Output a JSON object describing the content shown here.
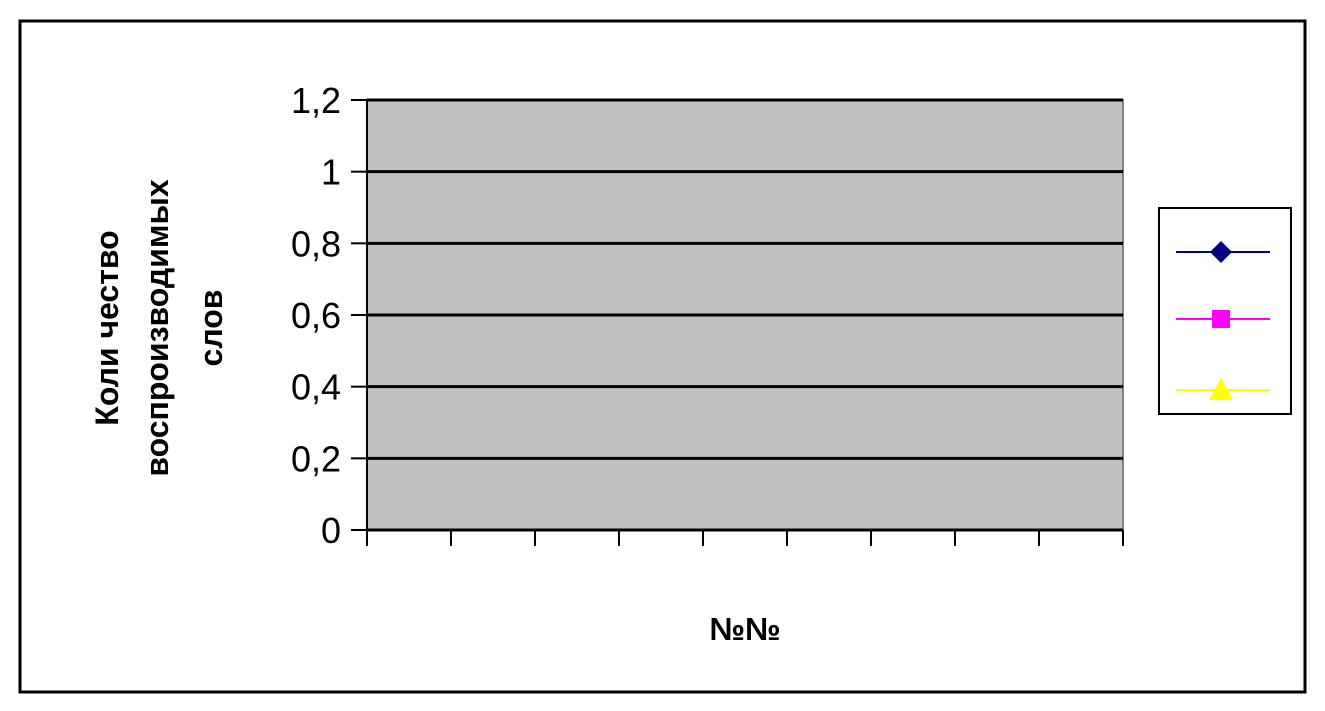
{
  "chart_data": {
    "type": "line",
    "title": "",
    "xlabel": "№№",
    "ylabel_lines": [
      "Коли чество",
      "воспроизводимых",
      "слов"
    ],
    "ylim": [
      0,
      1.2
    ],
    "yticks": [
      {
        "value": 0,
        "label": "0"
      },
      {
        "value": 0.2,
        "label": "0,2"
      },
      {
        "value": 0.4,
        "label": "0,4"
      },
      {
        "value": 0.6,
        "label": "0,6"
      },
      {
        "value": 0.8,
        "label": "0,8"
      },
      {
        "value": 1.0,
        "label": "1"
      },
      {
        "value": 1.2,
        "label": "1,2"
      }
    ],
    "x_category_count": 9,
    "categories": [],
    "series": [
      {
        "color": "#000080",
        "marker": "diamond",
        "values": []
      },
      {
        "color": "#FF00FF",
        "marker": "square",
        "values": []
      },
      {
        "color": "#FFFF00",
        "marker": "triangle",
        "values": []
      }
    ],
    "grid": true,
    "legend_position": "right",
    "plot_background": "#C0C0C0"
  }
}
